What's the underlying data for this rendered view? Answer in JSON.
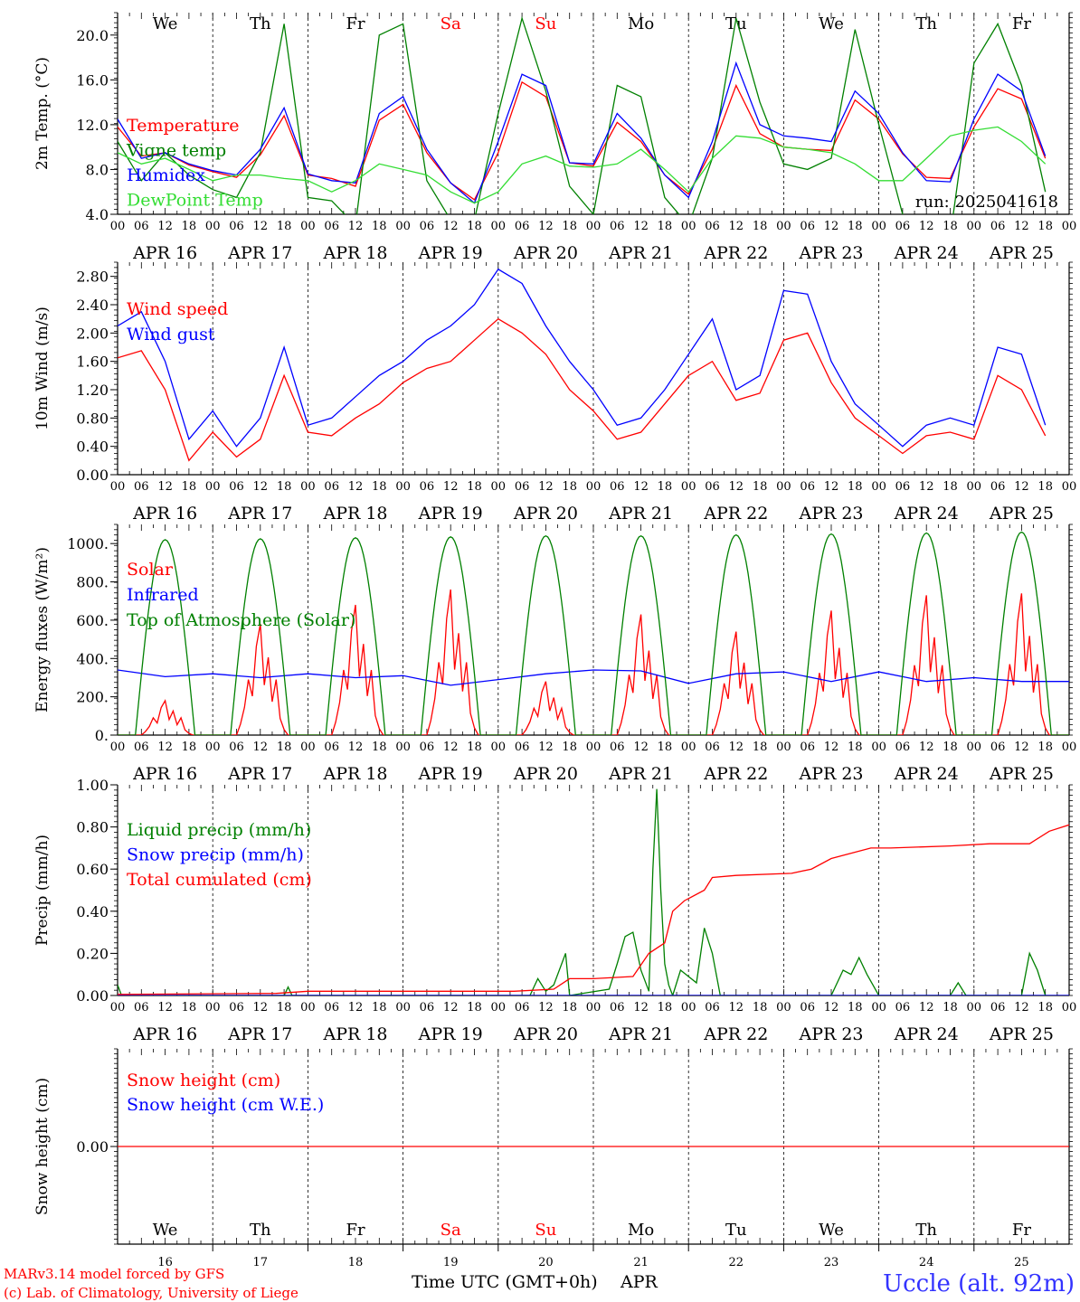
{
  "meta": {
    "run_label": "run: 2025041618",
    "model_line": "MARv3.14 model forced by GFS",
    "credit_line": "(c) Lab. of Climatology, University of Liege",
    "xaxis_title": "Time UTC (GMT+0h)",
    "month": "APR",
    "location": "Uccle (alt. 92m)"
  },
  "colors": {
    "red": "#ff0000",
    "blue": "#0000ff",
    "green": "#008000",
    "lightgreen": "#33dd33",
    "axis": "#000000"
  },
  "days": {
    "names": [
      "We",
      "Th",
      "Fr",
      "Sa",
      "Su",
      "Mo",
      "Tu",
      "We",
      "Th",
      "Fr"
    ],
    "weekend": [
      false,
      false,
      false,
      true,
      true,
      false,
      false,
      false,
      false,
      false
    ],
    "dates": [
      "APR 16",
      "APR 17",
      "APR 18",
      "APR 19",
      "APR 20",
      "APR 21",
      "APR 22",
      "APR 23",
      "APR 24",
      "APR 25"
    ],
    "numbers": [
      "16",
      "17",
      "18",
      "19",
      "20",
      "21",
      "22",
      "23",
      "24",
      "25"
    ],
    "hour_ticks": [
      "00",
      "06",
      "12",
      "18"
    ],
    "final_tick": "00"
  },
  "chart_data": [
    {
      "type": "line",
      "ylabel": "2m Temp. (°C)",
      "ylim": [
        4,
        22
      ],
      "yticks": [
        "4.0",
        "8.0",
        "12.0",
        "16.0",
        "20.0"
      ],
      "x_unit": "hours since APR 16 00 UTC",
      "series": [
        {
          "name": "Temperature",
          "color": "red",
          "x": [
            0,
            6,
            12,
            18,
            24,
            30,
            36,
            42,
            48,
            54,
            60,
            66,
            72,
            78,
            84,
            90,
            96,
            102,
            108,
            114,
            120,
            126,
            132,
            138,
            144,
            150,
            156,
            162,
            168,
            174,
            180,
            186,
            192,
            198,
            204,
            210,
            216,
            222,
            228,
            234
          ],
          "y": [
            11.8,
            9.2,
            9.5,
            8.4,
            7.8,
            7.3,
            9.3,
            12.8,
            7.5,
            7.2,
            6.5,
            12.4,
            13.8,
            9.5,
            6.8,
            5.3,
            9.5,
            15.8,
            14.5,
            8.6,
            8.3,
            12.2,
            10.5,
            7.5,
            5.8,
            9.8,
            15.5,
            11.2,
            10.0,
            9.8,
            9.7,
            14.2,
            12.5,
            9.4,
            7.3,
            7.2,
            11.8,
            15.2,
            14.3,
            9.0
          ]
        },
        {
          "name": "Vigne temp",
          "color": "green",
          "x": [
            0,
            6,
            12,
            18,
            24,
            30,
            36,
            42,
            48,
            54,
            60,
            66,
            72,
            78,
            84,
            90,
            96,
            102,
            108,
            114,
            120,
            126,
            132,
            138,
            144,
            150,
            156,
            162,
            168,
            174,
            180,
            186,
            192,
            198,
            204,
            210,
            216,
            222,
            228,
            234
          ],
          "y": [
            10.5,
            7.0,
            9.5,
            7.5,
            6.2,
            5.5,
            9.5,
            21.0,
            5.5,
            5.2,
            3.0,
            20.0,
            21.0,
            7.0,
            3.5,
            3.5,
            13.0,
            21.5,
            15.0,
            6.5,
            4.0,
            15.5,
            14.5,
            5.5,
            3.0,
            9.0,
            21.5,
            14.0,
            8.5,
            8.0,
            9.0,
            20.5,
            12.0,
            4.0,
            3.0,
            2.0,
            17.5,
            21.0,
            15.5,
            6.0
          ]
        },
        {
          "name": "Humidex",
          "color": "blue",
          "x": [
            0,
            6,
            12,
            18,
            24,
            30,
            36,
            42,
            48,
            54,
            60,
            66,
            72,
            78,
            84,
            90,
            96,
            102,
            108,
            114,
            120,
            126,
            132,
            138,
            144,
            150,
            156,
            162,
            168,
            174,
            180,
            186,
            192,
            198,
            204,
            210,
            216,
            222,
            228,
            234
          ],
          "y": [
            12.5,
            9.0,
            9.5,
            8.5,
            7.9,
            7.5,
            9.8,
            13.5,
            7.6,
            7.0,
            6.8,
            13.0,
            14.5,
            9.8,
            6.8,
            5.0,
            10.5,
            16.5,
            15.5,
            8.6,
            8.5,
            13.0,
            10.8,
            7.5,
            5.5,
            10.5,
            17.5,
            12.0,
            11.0,
            10.8,
            10.5,
            15.0,
            13.0,
            9.5,
            7.0,
            6.9,
            12.5,
            16.5,
            15.0,
            9.2
          ]
        },
        {
          "name": "DewPoint Temp",
          "color": "lightgreen",
          "x": [
            0,
            6,
            12,
            18,
            24,
            30,
            36,
            42,
            48,
            54,
            60,
            66,
            72,
            78,
            84,
            90,
            96,
            102,
            108,
            114,
            120,
            126,
            132,
            138,
            144,
            150,
            156,
            162,
            168,
            174,
            180,
            186,
            192,
            198,
            204,
            210,
            216,
            222,
            228,
            234
          ],
          "y": [
            9.5,
            8.5,
            9.0,
            8.0,
            7.0,
            7.5,
            7.5,
            7.2,
            7.0,
            6.0,
            7.0,
            8.5,
            8.0,
            7.5,
            6.0,
            5.0,
            6.0,
            8.5,
            9.2,
            8.3,
            8.2,
            8.5,
            9.8,
            8.0,
            6.0,
            9.0,
            11.0,
            10.8,
            10.0,
            9.8,
            9.5,
            8.5,
            7.0,
            7.0,
            9.0,
            11.0,
            11.5,
            11.8,
            10.5,
            8.5
          ]
        }
      ]
    },
    {
      "type": "line",
      "ylabel": "10m Wind (m/s)",
      "ylim": [
        0,
        3.0
      ],
      "yticks": [
        "0.00",
        "0.40",
        "0.80",
        "1.20",
        "1.60",
        "2.00",
        "2.40",
        "2.80"
      ],
      "x_unit": "hours since APR 16 00 UTC",
      "series": [
        {
          "name": "Wind speed",
          "color": "red",
          "x": [
            0,
            6,
            12,
            18,
            24,
            30,
            36,
            42,
            48,
            54,
            60,
            66,
            72,
            78,
            84,
            90,
            96,
            102,
            108,
            114,
            120,
            126,
            132,
            138,
            144,
            150,
            156,
            162,
            168,
            174,
            180,
            186,
            192,
            198,
            204,
            210,
            216,
            222,
            228,
            234
          ],
          "y": [
            1.65,
            1.75,
            1.2,
            0.2,
            0.6,
            0.25,
            0.5,
            1.4,
            0.6,
            0.55,
            0.8,
            1.0,
            1.3,
            1.5,
            1.6,
            1.9,
            2.2,
            2.0,
            1.7,
            1.2,
            0.9,
            0.5,
            0.6,
            1.0,
            1.4,
            1.6,
            1.05,
            1.15,
            1.9,
            2.0,
            1.3,
            0.8,
            0.55,
            0.3,
            0.55,
            0.6,
            0.5,
            1.4,
            1.2,
            0.55
          ]
        },
        {
          "name": "Wind gust",
          "color": "blue",
          "x": [
            0,
            6,
            12,
            18,
            24,
            30,
            36,
            42,
            48,
            54,
            60,
            66,
            72,
            78,
            84,
            90,
            96,
            102,
            108,
            114,
            120,
            126,
            132,
            138,
            144,
            150,
            156,
            162,
            168,
            174,
            180,
            186,
            192,
            198,
            204,
            210,
            216,
            222,
            228,
            234
          ],
          "y": [
            2.1,
            2.3,
            1.6,
            0.5,
            0.9,
            0.4,
            0.8,
            1.8,
            0.7,
            0.8,
            1.1,
            1.4,
            1.6,
            1.9,
            2.1,
            2.4,
            2.9,
            2.7,
            2.1,
            1.6,
            1.2,
            0.7,
            0.8,
            1.2,
            1.7,
            2.2,
            1.2,
            1.4,
            2.6,
            2.55,
            1.6,
            1.0,
            0.7,
            0.4,
            0.7,
            0.8,
            0.7,
            1.8,
            1.7,
            0.7
          ]
        }
      ]
    },
    {
      "type": "line",
      "ylabel": "Energy fluxes (W/m²)",
      "ylim": [
        0,
        1100
      ],
      "yticks": [
        "0.",
        "200.",
        "400.",
        "600.",
        "800.",
        "1000."
      ],
      "x_unit": "hours since APR 16 00 UTC",
      "series": [
        {
          "name": "Solar",
          "color": "red",
          "daily_peak": [
            180,
            580,
            680,
            760,
            280,
            630,
            540,
            650,
            730,
            740
          ]
        },
        {
          "name": "Infrared",
          "color": "blue",
          "x": [
            0,
            12,
            24,
            36,
            48,
            60,
            72,
            84,
            96,
            108,
            120,
            132,
            144,
            156,
            168,
            180,
            192,
            204,
            216,
            228,
            240
          ],
          "y": [
            340,
            305,
            320,
            300,
            320,
            300,
            310,
            260,
            290,
            320,
            340,
            335,
            270,
            320,
            330,
            280,
            330,
            280,
            300,
            280,
            280
          ]
        },
        {
          "name": "Top of Atmosphere (Solar)",
          "color": "green",
          "daily_peak": [
            1020,
            1025,
            1030,
            1035,
            1040,
            1040,
            1045,
            1050,
            1055,
            1060
          ]
        }
      ]
    },
    {
      "type": "line",
      "ylabel": "Precip (mm/h)",
      "ylim": [
        0,
        1.0
      ],
      "yticks": [
        "0.00",
        "0.20",
        "0.40",
        "0.60",
        "0.80",
        "1.00"
      ],
      "x_unit": "hours since APR 16 00 UTC",
      "series": [
        {
          "name": "Liquid precip (mm/h)",
          "color": "green",
          "x": [
            0,
            1,
            3,
            42,
            43,
            44,
            93,
            104,
            106,
            108,
            110,
            113,
            114,
            124,
            126,
            128,
            130,
            132,
            134,
            135,
            136,
            137,
            138,
            139,
            140,
            142,
            146,
            148,
            150,
            152,
            180,
            183,
            185,
            187,
            189,
            192,
            210,
            212,
            214,
            228,
            230,
            232,
            234
          ],
          "y": [
            0.05,
            0.0,
            0.0,
            0.0,
            0.04,
            0.0,
            0.0,
            0.0,
            0.08,
            0.02,
            0.05,
            0.2,
            0.0,
            0.03,
            0.15,
            0.28,
            0.3,
            0.12,
            0.02,
            0.6,
            0.98,
            0.5,
            0.15,
            0.05,
            0.0,
            0.12,
            0.06,
            0.32,
            0.2,
            0.0,
            0.0,
            0.12,
            0.1,
            0.18,
            0.1,
            0.0,
            0.0,
            0.06,
            0.0,
            0.0,
            0.2,
            0.12,
            0.0
          ]
        },
        {
          "name": "Snow precip (mm/h)",
          "color": "blue",
          "x": [
            0,
            240
          ],
          "y": [
            0,
            0
          ]
        },
        {
          "name": "Total cumulated (cm)",
          "color": "red",
          "x": [
            0,
            40,
            48,
            100,
            110,
            114,
            120,
            130,
            134,
            138,
            140,
            143,
            148,
            150,
            156,
            170,
            175,
            180,
            190,
            195,
            210,
            220,
            230,
            235,
            240
          ],
          "y": [
            0.005,
            0.01,
            0.02,
            0.02,
            0.03,
            0.08,
            0.08,
            0.09,
            0.2,
            0.25,
            0.4,
            0.45,
            0.5,
            0.56,
            0.57,
            0.58,
            0.6,
            0.65,
            0.7,
            0.7,
            0.71,
            0.72,
            0.72,
            0.78,
            0.81
          ]
        }
      ]
    },
    {
      "type": "line",
      "ylabel": "Snow height (cm)",
      "yticks": [
        "0.00"
      ],
      "x_unit": "hours since APR 16 00 UTC",
      "series": [
        {
          "name": "Snow height (cm)",
          "color": "red",
          "x": [
            0,
            240
          ],
          "y": [
            0,
            0
          ]
        },
        {
          "name": "Snow height (cm W.E.)",
          "color": "blue",
          "x": [],
          "y": []
        }
      ]
    }
  ]
}
